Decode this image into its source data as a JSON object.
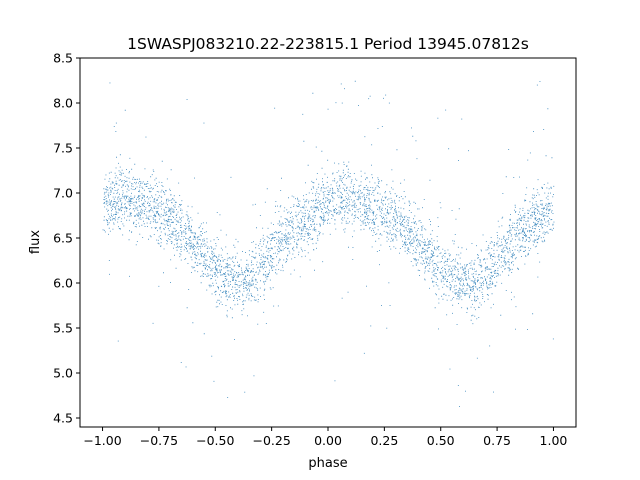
{
  "chart_data": {
    "type": "scatter",
    "title": "1SWASPJ083210.22-223815.1 Period 13945.07812s",
    "xlabel": "phase",
    "ylabel": "flux",
    "xlim": [
      -1.1,
      1.1
    ],
    "ylim": [
      4.4,
      8.5
    ],
    "x_ticks": [
      -1.0,
      -0.75,
      -0.5,
      -0.25,
      0.0,
      0.25,
      0.5,
      0.75,
      1.0
    ],
    "x_tick_labels": [
      "−1.00",
      "−0.75",
      "−0.50",
      "−0.25",
      "0.00",
      "0.25",
      "0.50",
      "0.75",
      "1.00"
    ],
    "y_ticks": [
      4.5,
      5.0,
      5.5,
      6.0,
      6.5,
      7.0,
      7.5,
      8.0,
      8.5
    ],
    "y_tick_labels": [
      "4.5",
      "5.0",
      "5.5",
      "6.0",
      "6.5",
      "7.0",
      "7.5",
      "8.0",
      "8.5"
    ],
    "grid": false,
    "point_color": "#1f77b4",
    "series": [
      {
        "x_range": [
          -1.0,
          1.0
        ],
        "trend_x": [
          -1.0,
          -0.95,
          -0.9,
          -0.85,
          -0.8,
          -0.75,
          -0.7,
          -0.65,
          -0.6,
          -0.55,
          -0.5,
          -0.45,
          -0.4,
          -0.35,
          -0.3,
          -0.25,
          -0.2,
          -0.15,
          -0.1,
          -0.05,
          0.0,
          0.05,
          0.1,
          0.15,
          0.2,
          0.25,
          0.3,
          0.35,
          0.4,
          0.45,
          0.5,
          0.55,
          0.6,
          0.65,
          0.7,
          0.75,
          0.8,
          0.85,
          0.9,
          0.95,
          1.0
        ],
        "trend_y": [
          6.85,
          6.92,
          6.93,
          6.9,
          6.85,
          6.78,
          6.7,
          6.6,
          6.45,
          6.3,
          6.15,
          6.05,
          6.0,
          6.05,
          6.2,
          6.35,
          6.5,
          6.6,
          6.7,
          6.8,
          6.9,
          6.93,
          6.93,
          6.9,
          6.85,
          6.78,
          6.7,
          6.6,
          6.45,
          6.3,
          6.15,
          6.05,
          6.0,
          6.0,
          6.1,
          6.25,
          6.4,
          6.55,
          6.65,
          6.75,
          6.85
        ],
        "n_points": 14000,
        "spread": 0.17,
        "outlier_fraction": 0.05,
        "outlier_y_range": [
          4.6,
          8.3
        ]
      }
    ]
  }
}
